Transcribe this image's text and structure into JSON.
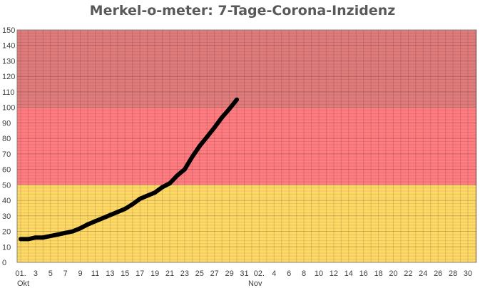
{
  "chart_data": {
    "type": "line",
    "title": "Merkel-o-meter: 7-Tage-Corona-Inzidenz",
    "xlabel": "",
    "ylabel": "",
    "ylim": [
      0,
      150
    ],
    "yticks": [
      0,
      10,
      20,
      30,
      40,
      50,
      60,
      70,
      80,
      90,
      100,
      110,
      120,
      130,
      140,
      150
    ],
    "x_range_days": [
      1,
      62
    ],
    "xticks": [
      {
        "day": 1,
        "label": "01."
      },
      {
        "day": 3,
        "label": "3"
      },
      {
        "day": 5,
        "label": "5"
      },
      {
        "day": 7,
        "label": "7"
      },
      {
        "day": 9,
        "label": "9"
      },
      {
        "day": 11,
        "label": "11"
      },
      {
        "day": 13,
        "label": "13"
      },
      {
        "day": 15,
        "label": "15"
      },
      {
        "day": 17,
        "label": "17"
      },
      {
        "day": 19,
        "label": "19"
      },
      {
        "day": 21,
        "label": "21"
      },
      {
        "day": 23,
        "label": "23"
      },
      {
        "day": 25,
        "label": "25"
      },
      {
        "day": 27,
        "label": "27"
      },
      {
        "day": 29,
        "label": "29"
      },
      {
        "day": 31,
        "label": "31"
      },
      {
        "day": 33,
        "label": "02."
      },
      {
        "day": 35,
        "label": "4"
      },
      {
        "day": 37,
        "label": "6"
      },
      {
        "day": 39,
        "label": "8"
      },
      {
        "day": 41,
        "label": "10"
      },
      {
        "day": 43,
        "label": "12"
      },
      {
        "day": 45,
        "label": "14"
      },
      {
        "day": 47,
        "label": "16"
      },
      {
        "day": 49,
        "label": "18"
      },
      {
        "day": 51,
        "label": "20"
      },
      {
        "day": 53,
        "label": "22"
      },
      {
        "day": 55,
        "label": "24"
      },
      {
        "day": 57,
        "label": "26"
      },
      {
        "day": 59,
        "label": "28"
      },
      {
        "day": 61,
        "label": "30"
      }
    ],
    "month_labels": [
      {
        "day": 1,
        "label": "Okt"
      },
      {
        "day": 32,
        "label": "Nov"
      }
    ],
    "bands": [
      {
        "from": 0,
        "to": 50,
        "color": "#ffd966"
      },
      {
        "from": 50,
        "to": 100,
        "color": "#ff7c80"
      },
      {
        "from": 100,
        "to": 150,
        "color": "#e07b7b"
      }
    ],
    "series": [
      {
        "color": "#000000",
        "x": [
          1,
          2,
          3,
          4,
          5,
          6,
          7,
          8,
          9,
          10,
          11,
          12,
          13,
          14,
          15,
          16,
          17,
          18,
          19,
          20,
          21,
          22,
          23,
          24,
          25,
          26,
          27,
          28,
          29,
          30
        ],
        "y": [
          15,
          15,
          16,
          16,
          17,
          18,
          19,
          20,
          22,
          24.5,
          26.5,
          28.5,
          30.5,
          32.5,
          34.5,
          37.5,
          41,
          43,
          45,
          48.5,
          51,
          56,
          60,
          68,
          75,
          81,
          87,
          93.5,
          99,
          105
        ]
      }
    ],
    "grid": true
  }
}
